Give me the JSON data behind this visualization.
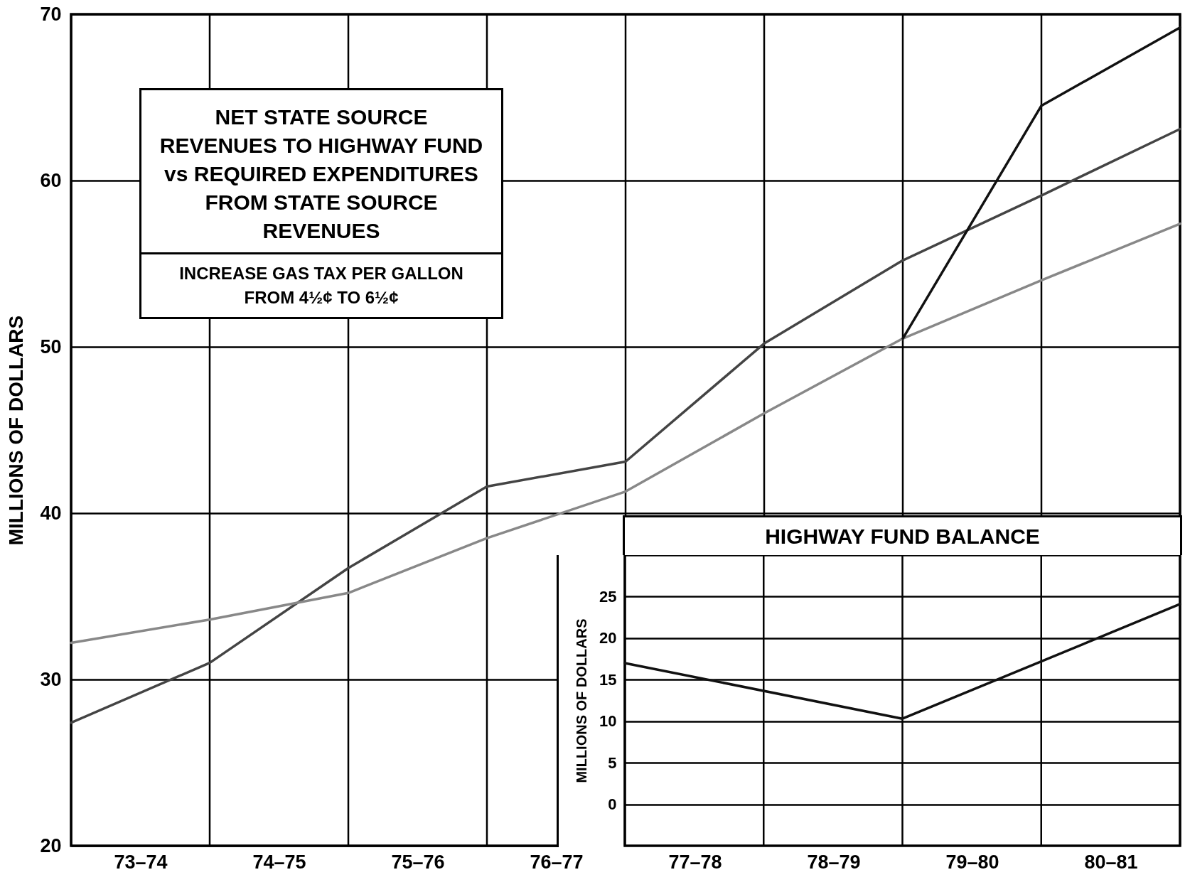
{
  "chart_data": [
    {
      "type": "line",
      "title": "NET STATE SOURCE REVENUES TO HIGHWAY FUND vs REQUIRED EXPENDITURES FROM STATE SOURCE REVENUES",
      "ylabel": "MILLIONS OF DOLLARS",
      "annotations": [
        "INCREASE GAS TAX PER GALLON FROM 4½¢ TO 6½¢"
      ],
      "categories": [
        null,
        "73–74",
        null,
        "74–75",
        null,
        "75–76",
        null,
        "76–77",
        null,
        "77–78",
        null,
        "78–79",
        null,
        "79–80",
        null,
        "80–81",
        null
      ],
      "ylim": [
        20,
        70
      ],
      "yticks": [
        20,
        30,
        40,
        50,
        60,
        70
      ],
      "grid": true,
      "series": [
        {
          "color": "#444444",
          "values": [
            27.4,
            null,
            31.0,
            null,
            36.7,
            null,
            41.6,
            null,
            43.1,
            null,
            50.2,
            null,
            55.2,
            null,
            59.1,
            null,
            63.1
          ]
        },
        {
          "color": "#888888",
          "values": [
            32.2,
            null,
            33.6,
            null,
            35.2,
            null,
            38.5,
            null,
            41.3,
            null,
            46.0,
            null,
            50.5,
            null,
            54.0,
            null,
            57.4
          ]
        },
        {
          "color": "#111111",
          "values": [
            null,
            null,
            null,
            null,
            null,
            null,
            null,
            null,
            null,
            null,
            null,
            null,
            50.5,
            null,
            64.5,
            null,
            69.2
          ]
        }
      ]
    },
    {
      "type": "line",
      "title": "HIGHWAY FUND BALANCE",
      "ylabel": "MILLIONS OF DOLLARS",
      "categories": [
        null,
        null,
        null,
        null,
        null
      ],
      "ylim": [
        -5,
        30
      ],
      "yticks": [
        0,
        5,
        10,
        15,
        20,
        25
      ],
      "grid": true,
      "tick_labels": "y",
      "series": [
        {
          "color": "#111111",
          "values": [
            17.0,
            null,
            10.3,
            null,
            24.1
          ]
        }
      ]
    }
  ]
}
